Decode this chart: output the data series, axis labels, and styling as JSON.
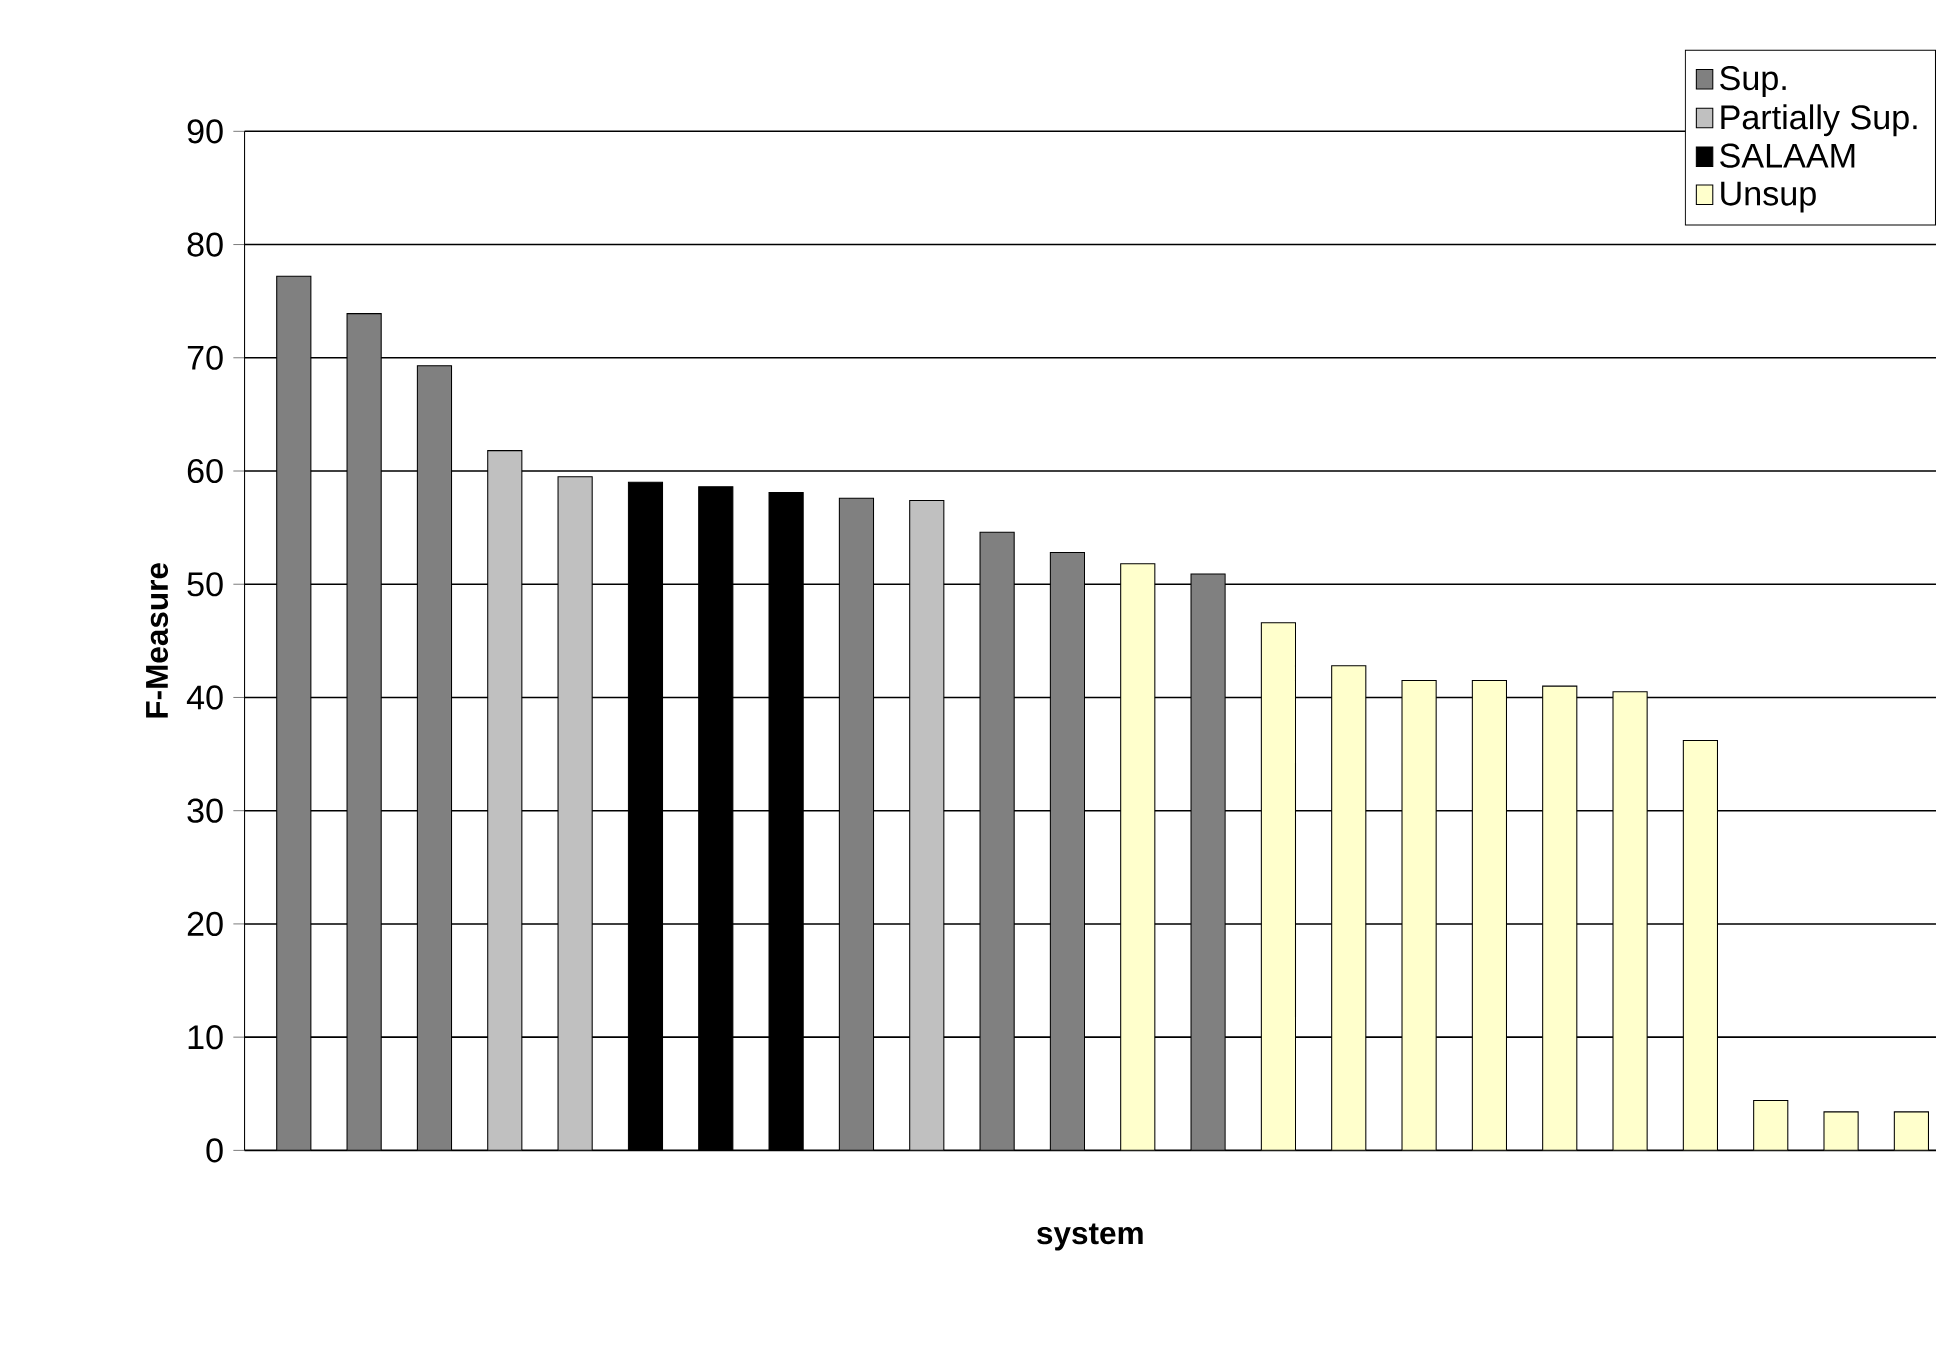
{
  "chart_data": {
    "type": "bar",
    "xlabel": "system",
    "ylabel": "F-Measure",
    "categories": [
      null,
      null,
      null,
      null,
      null,
      null,
      null,
      null,
      null,
      null,
      null,
      null,
      null,
      null,
      null,
      null,
      null,
      null,
      null,
      null,
      null,
      null,
      null,
      null
    ],
    "series": [
      {
        "name": "Sup.",
        "color": "#808080",
        "values": [
          77.2,
          73.9,
          69.3,
          null,
          null,
          null,
          null,
          null,
          57.6,
          null,
          54.6,
          52.8,
          null,
          50.9,
          null,
          null,
          null,
          null,
          null,
          null,
          null,
          null,
          null,
          null
        ]
      },
      {
        "name": "Partially Sup.",
        "color": "#c0c0c0",
        "values": [
          null,
          null,
          null,
          61.8,
          59.5,
          null,
          null,
          null,
          null,
          57.4,
          null,
          null,
          null,
          null,
          null,
          null,
          null,
          null,
          null,
          null,
          null,
          null,
          null,
          null
        ]
      },
      {
        "name": "SALAAM",
        "color": "#000000",
        "values": [
          null,
          null,
          null,
          null,
          null,
          59.0,
          58.6,
          58.1,
          null,
          null,
          null,
          null,
          null,
          null,
          null,
          null,
          null,
          null,
          null,
          null,
          null,
          null,
          null,
          null
        ]
      },
      {
        "name": "Unsup",
        "color": "#ffffcc",
        "values": [
          null,
          null,
          null,
          null,
          null,
          null,
          null,
          null,
          null,
          null,
          null,
          null,
          51.8,
          null,
          46.6,
          42.8,
          41.5,
          41.5,
          41.0,
          40.5,
          36.2,
          4.4,
          3.4,
          3.4
        ]
      }
    ],
    "ylim": [
      0,
      90
    ],
    "yticks": [
      0,
      10,
      20,
      30,
      40,
      50,
      60,
      70,
      80,
      90
    ],
    "grid": "y",
    "legend": "top right"
  }
}
